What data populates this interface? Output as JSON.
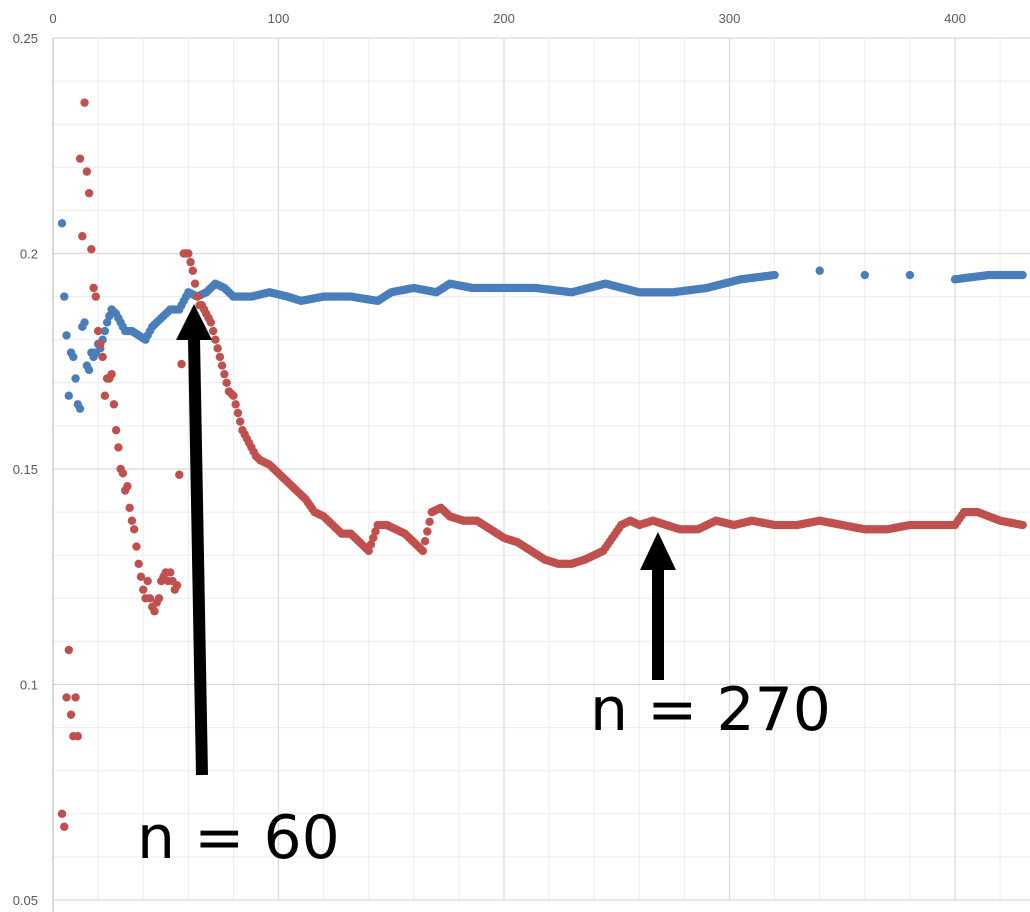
{
  "chart_data": {
    "type": "scatter",
    "title": "",
    "xlabel": "",
    "ylabel": "",
    "xlim": [
      0,
      430
    ],
    "ylim": [
      0.05,
      0.25
    ],
    "x_ticks": [
      "0",
      "100",
      "200",
      "300",
      "400"
    ],
    "y_ticks": [
      "0.25",
      "0.2",
      "0.15",
      "0.1",
      "0.05"
    ],
    "x_minor_step": 20,
    "y_minor_step": 0.01,
    "grid": true,
    "legend": "none",
    "series": [
      {
        "color": "#4a7ebb",
        "points": [
          [
            4,
            0.207
          ],
          [
            5,
            0.19
          ],
          [
            6,
            0.181
          ],
          [
            7,
            0.167
          ],
          [
            8,
            0.177
          ],
          [
            9,
            0.176
          ],
          [
            10,
            0.171
          ],
          [
            11,
            0.165
          ],
          [
            12,
            0.164
          ],
          [
            13,
            0.183
          ],
          [
            14,
            0.184
          ],
          [
            15,
            0.174
          ],
          [
            16,
            0.173
          ],
          [
            17,
            0.177
          ],
          [
            18,
            0.176
          ],
          [
            19,
            0.177
          ],
          [
            20,
            0.179
          ],
          [
            21,
            0.178
          ],
          [
            22,
            0.18
          ],
          [
            24,
            0.184
          ],
          [
            26,
            0.187
          ],
          [
            28,
            0.186
          ],
          [
            30,
            0.184
          ],
          [
            32,
            0.182
          ],
          [
            35,
            0.182
          ],
          [
            38,
            0.181
          ],
          [
            41,
            0.18
          ],
          [
            44,
            0.183
          ],
          [
            48,
            0.185
          ],
          [
            52,
            0.187
          ],
          [
            56,
            0.187
          ],
          [
            60,
            0.191
          ],
          [
            64,
            0.19
          ],
          [
            68,
            0.191
          ],
          [
            72,
            0.193
          ],
          [
            76,
            0.192
          ],
          [
            80,
            0.19
          ],
          [
            88,
            0.19
          ],
          [
            96,
            0.191
          ],
          [
            104,
            0.19
          ],
          [
            110,
            0.189
          ],
          [
            120,
            0.19
          ],
          [
            132,
            0.19
          ],
          [
            144,
            0.189
          ],
          [
            150,
            0.191
          ],
          [
            160,
            0.192
          ],
          [
            170,
            0.191
          ],
          [
            176,
            0.193
          ],
          [
            186,
            0.192
          ],
          [
            200,
            0.192
          ],
          [
            214,
            0.192
          ],
          [
            230,
            0.191
          ],
          [
            245,
            0.193
          ],
          [
            260,
            0.191
          ],
          [
            275,
            0.191
          ],
          [
            290,
            0.192
          ],
          [
            305,
            0.194
          ],
          [
            320,
            0.195
          ],
          [
            340,
            0.196
          ],
          [
            360,
            0.195
          ],
          [
            380,
            0.195
          ],
          [
            400,
            0.194
          ],
          [
            415,
            0.195
          ],
          [
            430,
            0.195
          ]
        ]
      },
      {
        "color": "#c0504d",
        "points": [
          [
            4,
            0.07
          ],
          [
            5,
            0.067
          ],
          [
            6,
            0.097
          ],
          [
            7,
            0.108
          ],
          [
            8,
            0.093
          ],
          [
            9,
            0.088
          ],
          [
            10,
            0.097
          ],
          [
            11,
            0.088
          ],
          [
            12,
            0.222
          ],
          [
            13,
            0.204
          ],
          [
            14,
            0.235
          ],
          [
            15,
            0.219
          ],
          [
            16,
            0.214
          ],
          [
            17,
            0.201
          ],
          [
            18,
            0.192
          ],
          [
            19,
            0.19
          ],
          [
            20,
            0.182
          ],
          [
            21,
            0.179
          ],
          [
            22,
            0.176
          ],
          [
            23,
            0.167
          ],
          [
            24,
            0.171
          ],
          [
            25,
            0.171
          ],
          [
            26,
            0.172
          ],
          [
            27,
            0.165
          ],
          [
            28,
            0.159
          ],
          [
            29,
            0.155
          ],
          [
            30,
            0.15
          ],
          [
            31,
            0.149
          ],
          [
            32,
            0.145
          ],
          [
            33,
            0.146
          ],
          [
            34,
            0.141
          ],
          [
            35,
            0.138
          ],
          [
            36,
            0.136
          ],
          [
            37,
            0.132
          ],
          [
            38,
            0.128
          ],
          [
            39,
            0.125
          ],
          [
            40,
            0.122
          ],
          [
            41,
            0.12
          ],
          [
            42,
            0.124
          ],
          [
            43,
            0.12
          ],
          [
            44,
            0.118
          ],
          [
            45,
            0.117
          ],
          [
            46,
            0.119
          ],
          [
            47,
            0.12
          ],
          [
            48,
            0.124
          ],
          [
            49,
            0.125
          ],
          [
            50,
            0.126
          ],
          [
            51,
            0.124
          ],
          [
            52,
            0.126
          ],
          [
            53,
            0.124
          ],
          [
            54,
            0.122
          ],
          [
            55,
            0.123
          ],
          [
            58,
            0.2
          ],
          [
            60,
            0.2
          ],
          [
            62,
            0.196
          ],
          [
            63,
            0.193
          ],
          [
            64,
            0.19
          ],
          [
            65,
            0.188
          ],
          [
            66,
            0.188
          ],
          [
            68,
            0.186
          ],
          [
            70,
            0.184
          ],
          [
            72,
            0.18
          ],
          [
            74,
            0.176
          ],
          [
            76,
            0.172
          ],
          [
            78,
            0.168
          ],
          [
            80,
            0.167
          ],
          [
            82,
            0.163
          ],
          [
            84,
            0.159
          ],
          [
            86,
            0.157
          ],
          [
            88,
            0.155
          ],
          [
            90,
            0.153
          ],
          [
            92,
            0.152
          ],
          [
            96,
            0.151
          ],
          [
            100,
            0.149
          ],
          [
            104,
            0.147
          ],
          [
            108,
            0.145
          ],
          [
            112,
            0.143
          ],
          [
            116,
            0.14
          ],
          [
            120,
            0.139
          ],
          [
            124,
            0.137
          ],
          [
            128,
            0.135
          ],
          [
            132,
            0.135
          ],
          [
            136,
            0.133
          ],
          [
            140,
            0.131
          ],
          [
            144,
            0.137
          ],
          [
            148,
            0.137
          ],
          [
            152,
            0.136
          ],
          [
            156,
            0.135
          ],
          [
            160,
            0.133
          ],
          [
            164,
            0.131
          ],
          [
            168,
            0.14
          ],
          [
            172,
            0.141
          ],
          [
            176,
            0.139
          ],
          [
            182,
            0.138
          ],
          [
            188,
            0.138
          ],
          [
            194,
            0.136
          ],
          [
            200,
            0.134
          ],
          [
            206,
            0.133
          ],
          [
            212,
            0.131
          ],
          [
            218,
            0.129
          ],
          [
            224,
            0.128
          ],
          [
            230,
            0.128
          ],
          [
            236,
            0.129
          ],
          [
            240,
            0.13
          ],
          [
            244,
            0.131
          ],
          [
            248,
            0.134
          ],
          [
            252,
            0.137
          ],
          [
            256,
            0.138
          ],
          [
            260,
            0.137
          ],
          [
            266,
            0.138
          ],
          [
            272,
            0.137
          ],
          [
            278,
            0.136
          ],
          [
            286,
            0.136
          ],
          [
            294,
            0.138
          ],
          [
            302,
            0.137
          ],
          [
            310,
            0.138
          ],
          [
            320,
            0.137
          ],
          [
            330,
            0.137
          ],
          [
            340,
            0.138
          ],
          [
            350,
            0.137
          ],
          [
            360,
            0.136
          ],
          [
            370,
            0.136
          ],
          [
            380,
            0.137
          ],
          [
            390,
            0.137
          ],
          [
            400,
            0.137
          ],
          [
            404,
            0.14
          ],
          [
            410,
            0.14
          ],
          [
            420,
            0.138
          ],
          [
            430,
            0.137
          ]
        ]
      }
    ],
    "annotations": [
      {
        "text": "n = 60",
        "x": 63,
        "y": 0.188,
        "arrow": "up"
      },
      {
        "text": "n = 270",
        "x": 268,
        "y": 0.136,
        "arrow": "up"
      }
    ]
  }
}
